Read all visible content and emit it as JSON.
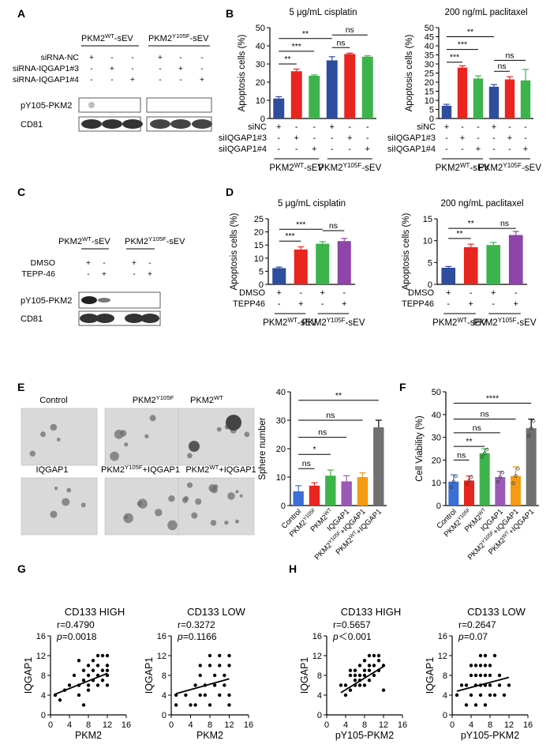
{
  "panel_letters": [
    "A",
    "B",
    "C",
    "D",
    "E",
    "F",
    "G",
    "H"
  ],
  "panelA": {
    "group_wt": "PKM2WT-sEV",
    "group_wt_base": "PKM2",
    "group_wt_sup": "WT",
    "group_wt_suffix": "-sEV",
    "group_mut_base": "PKM2",
    "group_mut_sup": "Y105F",
    "group_mut_suffix": "-sEV",
    "row_labels": [
      "siRNA-NC",
      "siRNA-IQGAP1#3",
      "siRNA-IQGAP1#4"
    ],
    "row_signs": [
      [
        "+",
        "-",
        "-",
        "+",
        "-",
        "-"
      ],
      [
        "-",
        "+",
        "-",
        "-",
        "+",
        "-"
      ],
      [
        "-",
        "-",
        "+",
        "-",
        "-",
        "+"
      ]
    ],
    "blot_labels": [
      "pY105-PKM2",
      "CD81"
    ]
  },
  "panelC": {
    "group_wt_base": "PKM2",
    "group_wt_sup": "WT",
    "group_wt_suffix": "-sEV",
    "group_mut_base": "PKM2",
    "group_mut_sup": "Y105F",
    "group_mut_suffix": "-sEV",
    "row_labels": [
      "DMSO",
      "TEPP-46"
    ],
    "row_signs": [
      [
        "+",
        "-",
        "+",
        "-"
      ],
      [
        "-",
        "+",
        "-",
        "+"
      ]
    ],
    "blot_labels": [
      "pY105-PKM2",
      "CD81"
    ]
  },
  "panelE": {
    "image_labels": [
      {
        "base": "Control",
        "sup": "",
        "suffix": ""
      },
      {
        "base": "PKM2",
        "sup": "Y105F",
        "suffix": ""
      },
      {
        "base": "PKM2",
        "sup": "WT",
        "suffix": ""
      },
      {
        "base": "IQGAP1",
        "sup": "",
        "suffix": ""
      },
      {
        "base": "PKM2",
        "sup": "Y105F",
        "suffix": "+IQGAP1"
      },
      {
        "base": "PKM2",
        "sup": "WT",
        "suffix": "+IQGAP1"
      }
    ]
  },
  "chart_data": [
    {
      "id": "B1",
      "type": "bar",
      "title": "5 μg/mL cisplatin",
      "ylabel": "Apoptosis cells (%)",
      "ylim": [
        0,
        50
      ],
      "yticks": [
        0,
        10,
        20,
        30,
        40,
        50
      ],
      "values": [
        11,
        26,
        23.5,
        32,
        35.5,
        34
      ],
      "errors": [
        1,
        1.2,
        0.5,
        2,
        0.5,
        0.5
      ],
      "colors": [
        "#2f4d9e",
        "#e8251f",
        "#3cb44b",
        "#2f4d9e",
        "#e8251f",
        "#3cb44b"
      ],
      "row_labels": [
        "siNC",
        "siIQGAP1#3",
        "siIQGAP1#4"
      ],
      "row_signs": [
        [
          "+",
          "-",
          "-",
          "+",
          "-",
          "-"
        ],
        [
          "-",
          "+",
          "-",
          "-",
          "+",
          "-"
        ],
        [
          "-",
          "-",
          "+",
          "-",
          "-",
          "+"
        ]
      ],
      "group_labels": [
        {
          "base": "PKM2",
          "sup": "WT",
          "suffix": "-sEV"
        },
        {
          "base": "PKM2",
          "sup": "Y105F",
          "suffix": "-sEV"
        }
      ],
      "significance": [
        {
          "from": 0,
          "to": 1,
          "label": "**",
          "y": 30
        },
        {
          "from": 0,
          "to": 2,
          "label": "***",
          "y": 37
        },
        {
          "from": 0,
          "to": 3,
          "label": "**",
          "y": 44
        },
        {
          "from": 3,
          "to": 4,
          "label": "ns",
          "y": 39
        },
        {
          "from": 3,
          "to": 5,
          "label": "ns",
          "y": 46
        }
      ]
    },
    {
      "id": "B2",
      "type": "bar",
      "title": "200 ng/mL paclitaxel",
      "ylabel": "Apoptosis cells (%)",
      "ylim": [
        0,
        50
      ],
      "yticks": [
        0,
        5,
        10,
        15,
        20,
        25,
        30,
        35,
        40,
        45,
        50
      ],
      "values": [
        7,
        28,
        22,
        17.5,
        21.5,
        21
      ],
      "errors": [
        0.8,
        1,
        1.5,
        1.2,
        1.5,
        6
      ],
      "colors": [
        "#2f4d9e",
        "#e8251f",
        "#3cb44b",
        "#2f4d9e",
        "#e8251f",
        "#3cb44b"
      ],
      "row_labels": [
        "siNC",
        "siIQGAP1#3",
        "siIQGAP1#4"
      ],
      "row_signs": [
        [
          "+",
          "-",
          "-",
          "+",
          "-",
          "-"
        ],
        [
          "-",
          "+",
          "-",
          "-",
          "+",
          "-"
        ],
        [
          "-",
          "-",
          "+",
          "-",
          "-",
          "+"
        ]
      ],
      "group_labels": [
        {
          "base": "PKM2",
          "sup": "WT",
          "suffix": "-sEV"
        },
        {
          "base": "PKM2",
          "sup": "Y105F",
          "suffix": "-sEV"
        }
      ],
      "significance": [
        {
          "from": 0,
          "to": 1,
          "label": "***",
          "y": 31
        },
        {
          "from": 0,
          "to": 2,
          "label": "***",
          "y": 38
        },
        {
          "from": 0,
          "to": 3,
          "label": "**",
          "y": 45
        },
        {
          "from": 3,
          "to": 4,
          "label": "ns",
          "y": 26
        },
        {
          "from": 3,
          "to": 5,
          "label": "ns",
          "y": 32
        }
      ]
    },
    {
      "id": "D1",
      "type": "bar",
      "title": "5 μg/mL cisplatin",
      "ylabel": "Apoptosis cells (%)",
      "ylim": [
        0,
        25
      ],
      "yticks": [
        0,
        5,
        10,
        15,
        20,
        25
      ],
      "values": [
        6.2,
        13.3,
        15.5,
        16.5
      ],
      "errors": [
        0.4,
        1,
        0.8,
        1
      ],
      "colors": [
        "#2f4d9e",
        "#e8251f",
        "#3cb44b",
        "#8e44a8"
      ],
      "row_labels": [
        "DMSO",
        "TEPP46"
      ],
      "row_signs": [
        [
          "+",
          "-",
          "+",
          "-"
        ],
        [
          "-",
          "+",
          "-",
          "+"
        ]
      ],
      "group_labels": [
        {
          "base": "PKM2",
          "sup": "WT",
          "suffix": "-sEV"
        },
        {
          "base": "PKM2",
          "sup": "Y105F",
          "suffix": "-sEV"
        }
      ],
      "significance": [
        {
          "from": 0,
          "to": 1,
          "label": "***",
          "y": 16.5
        },
        {
          "from": 0,
          "to": 2,
          "label": "***",
          "y": 21
        },
        {
          "from": 2,
          "to": 3,
          "label": "ns",
          "y": 20.5
        }
      ]
    },
    {
      "id": "D2",
      "type": "bar",
      "title": "200 ng/mL paclitaxel",
      "ylabel": "Apoptosis cells (%)",
      "ylim": [
        0,
        15
      ],
      "yticks": [
        0,
        5,
        10,
        15
      ],
      "values": [
        3.8,
        8.5,
        9,
        11.3
      ],
      "errors": [
        0.3,
        0.7,
        0.6,
        0.8
      ],
      "colors": [
        "#2f4d9e",
        "#e8251f",
        "#3cb44b",
        "#8e44a8"
      ],
      "row_labels": [
        "DMSO",
        "TEPP46"
      ],
      "row_signs": [
        [
          "+",
          "-",
          "+",
          "-"
        ],
        [
          "-",
          "+",
          "-",
          "+"
        ]
      ],
      "group_labels": [
        {
          "base": "PKM2",
          "sup": "WT",
          "suffix": "-sEV"
        },
        {
          "base": "PKM2",
          "sup": "Y105F",
          "suffix": "-sEV"
        }
      ],
      "significance": [
        {
          "from": 0,
          "to": 1,
          "label": "**",
          "y": 10.5
        },
        {
          "from": 0,
          "to": 2,
          "label": "**",
          "y": 12.8
        },
        {
          "from": 2,
          "to": 3,
          "label": "ns",
          "y": 12.8
        }
      ]
    },
    {
      "id": "E",
      "type": "bar",
      "title": "",
      "ylabel": "Sphere number",
      "ylim": [
        0,
        40
      ],
      "yticks": [
        0,
        10,
        20,
        30,
        40
      ],
      "categories": [
        {
          "base": "Control",
          "sup": "",
          "suffix": ""
        },
        {
          "base": "PKM2",
          "sup": "Y105F",
          "suffix": ""
        },
        {
          "base": "PKM2",
          "sup": "WT",
          "suffix": ""
        },
        {
          "base": "IQGAP1",
          "sup": "",
          "suffix": ""
        },
        {
          "base": "PKM2",
          "sup": "Y105F",
          "suffix": "+IQGAP1"
        },
        {
          "base": "PKM2",
          "sup": "WT",
          "suffix": "+IQGAP1"
        }
      ],
      "values": [
        5,
        7,
        10.5,
        8.5,
        10,
        27.5
      ],
      "errors": [
        2,
        1,
        2,
        2,
        1.5,
        2.5
      ],
      "colors": [
        "#3b6fd6",
        "#e8251f",
        "#3cb44b",
        "#9b59b6",
        "#f39c12",
        "#707070"
      ],
      "significance": [
        {
          "from": 0,
          "to": 1,
          "label": "ns",
          "y": 13
        },
        {
          "from": 0,
          "to": 2,
          "label": "*",
          "y": 18
        },
        {
          "from": 0,
          "to": 3,
          "label": "ns",
          "y": 24
        },
        {
          "from": 0,
          "to": 4,
          "label": "ns",
          "y": 30
        },
        {
          "from": 0,
          "to": 5,
          "label": "**",
          "y": 37
        }
      ]
    },
    {
      "id": "F",
      "type": "bar",
      "title": "",
      "ylabel": "Cell Viability (%)",
      "ylim": [
        0,
        50
      ],
      "yticks": [
        0,
        10,
        20,
        30,
        40,
        50
      ],
      "categories": [
        {
          "base": "Control",
          "sup": "",
          "suffix": ""
        },
        {
          "base": "PKM2",
          "sup": "Y105F",
          "suffix": ""
        },
        {
          "base": "PKM2",
          "sup": "WT",
          "suffix": ""
        },
        {
          "base": "IQGAP1",
          "sup": "",
          "suffix": ""
        },
        {
          "base": "PKM2",
          "sup": "Y105F",
          "suffix": "+IQGAP1"
        },
        {
          "base": "PKM2",
          "sup": "WT",
          "suffix": "+IQGAP1"
        }
      ],
      "values": [
        10.5,
        11,
        23,
        12.5,
        13,
        34
      ],
      "errors": [
        3,
        2,
        2,
        2.5,
        4,
        4
      ],
      "colors": [
        "#3b6fd6",
        "#e8251f",
        "#3cb44b",
        "#9b59b6",
        "#f39c12",
        "#707070"
      ],
      "significance": [
        {
          "from": 0,
          "to": 1,
          "label": "ns",
          "y": 20
        },
        {
          "from": 0,
          "to": 2,
          "label": "**",
          "y": 26
        },
        {
          "from": 0,
          "to": 3,
          "label": "ns",
          "y": 32
        },
        {
          "from": 0,
          "to": 4,
          "label": "ns",
          "y": 38
        },
        {
          "from": 0,
          "to": 5,
          "label": "****",
          "y": 45
        }
      ]
    },
    {
      "id": "G1",
      "type": "scatter",
      "title": "CD133 HIGH",
      "r_text": "r=0.4790",
      "p_text": "p=0.0018",
      "xlabel": "PKM2",
      "ylabel": "IQGAP1",
      "xlim": [
        0,
        16
      ],
      "ylim": [
        0,
        16
      ],
      "xticks": [
        0,
        4,
        8,
        12,
        16
      ],
      "yticks": [
        0,
        4,
        8,
        12,
        16
      ],
      "points": [
        [
          1,
          4
        ],
        [
          2,
          3
        ],
        [
          3,
          5
        ],
        [
          4,
          6
        ],
        [
          5,
          8
        ],
        [
          6,
          4
        ],
        [
          6,
          6
        ],
        [
          6,
          11
        ],
        [
          7,
          7
        ],
        [
          7,
          2
        ],
        [
          7,
          9
        ],
        [
          8,
          6
        ],
        [
          8,
          8
        ],
        [
          8,
          10
        ],
        [
          8,
          5
        ],
        [
          9,
          7
        ],
        [
          9,
          11
        ],
        [
          9,
          9
        ],
        [
          10,
          8
        ],
        [
          10,
          6
        ],
        [
          10,
          10
        ],
        [
          10,
          12
        ],
        [
          11,
          7
        ],
        [
          11,
          9
        ],
        [
          11,
          12
        ],
        [
          12,
          8
        ],
        [
          12,
          10
        ],
        [
          12,
          6
        ],
        [
          12,
          12
        ],
        [
          12,
          9
        ]
      ],
      "line": [
        [
          1,
          4.2
        ],
        [
          12,
          8.4
        ]
      ]
    },
    {
      "id": "G2",
      "type": "scatter",
      "title": "CD133 LOW",
      "r_text": "r=0.3272",
      "p_text": "p=0.1166",
      "xlabel": "PKM2",
      "ylabel": "IQGAP1",
      "xlim": [
        0,
        16
      ],
      "ylim": [
        0,
        16
      ],
      "xticks": [
        0,
        4,
        8,
        12,
        16
      ],
      "yticks": [
        0,
        4,
        8,
        12,
        16
      ],
      "points": [
        [
          1,
          4
        ],
        [
          1,
          2
        ],
        [
          3,
          4
        ],
        [
          4,
          2
        ],
        [
          5,
          2
        ],
        [
          5,
          6
        ],
        [
          6,
          4
        ],
        [
          6,
          8
        ],
        [
          6,
          10
        ],
        [
          7,
          4
        ],
        [
          7,
          6
        ],
        [
          8,
          2
        ],
        [
          8,
          10
        ],
        [
          8,
          12
        ],
        [
          9,
          6
        ],
        [
          9,
          8
        ],
        [
          10,
          10
        ],
        [
          10,
          4
        ],
        [
          10,
          12
        ],
        [
          11,
          6
        ],
        [
          11,
          8
        ],
        [
          12,
          10
        ],
        [
          12,
          12
        ],
        [
          12,
          2
        ],
        [
          12,
          4
        ]
      ],
      "line": [
        [
          1,
          4.3
        ],
        [
          12,
          7.3
        ]
      ]
    },
    {
      "id": "H1",
      "type": "scatter",
      "title": "CD133 HIGH",
      "r_text": "r=0.5657",
      "p_text": "p＜0.001",
      "xlabel": "pY105-PKM2",
      "ylabel": "IQGAP1",
      "xlim": [
        0,
        16
      ],
      "ylim": [
        0,
        16
      ],
      "xticks": [
        0,
        4,
        8,
        12,
        16
      ],
      "yticks": [
        0,
        4,
        8,
        12,
        16
      ],
      "points": [
        [
          3,
          6
        ],
        [
          4,
          4
        ],
        [
          4,
          6
        ],
        [
          5,
          5
        ],
        [
          5,
          8
        ],
        [
          5,
          9
        ],
        [
          6,
          6
        ],
        [
          6,
          7
        ],
        [
          6,
          8
        ],
        [
          7,
          6
        ],
        [
          7,
          8
        ],
        [
          7,
          10
        ],
        [
          7,
          7
        ],
        [
          8,
          8
        ],
        [
          8,
          9
        ],
        [
          8,
          11
        ],
        [
          8,
          6
        ],
        [
          9,
          9
        ],
        [
          9,
          10
        ],
        [
          9,
          12
        ],
        [
          10,
          10
        ],
        [
          10,
          8
        ],
        [
          10,
          12
        ],
        [
          11,
          9
        ],
        [
          11,
          11
        ],
        [
          12,
          10
        ],
        [
          12,
          5
        ],
        [
          6,
          9
        ],
        [
          9,
          7
        ],
        [
          11,
          12
        ]
      ],
      "line": [
        [
          3,
          4.5
        ],
        [
          12,
          9.8
        ]
      ]
    },
    {
      "id": "H2",
      "type": "scatter",
      "title": "CD133 LOW",
      "r_text": "r=0.2647",
      "p_text": "p=0.07",
      "xlabel": "pY105-PKM2",
      "ylabel": "IQGAP1",
      "xlim": [
        0,
        16
      ],
      "ylim": [
        0,
        16
      ],
      "xticks": [
        0,
        4,
        8,
        12,
        16
      ],
      "yticks": [
        0,
        4,
        8,
        12,
        16
      ],
      "points": [
        [
          1,
          4
        ],
        [
          2,
          6
        ],
        [
          3,
          2
        ],
        [
          3,
          6
        ],
        [
          4,
          4
        ],
        [
          4,
          8
        ],
        [
          4,
          10
        ],
        [
          5,
          2
        ],
        [
          5,
          6
        ],
        [
          5,
          8
        ],
        [
          5,
          10
        ],
        [
          6,
          4
        ],
        [
          6,
          6
        ],
        [
          6,
          8
        ],
        [
          6,
          12
        ],
        [
          7,
          2
        ],
        [
          7,
          6
        ],
        [
          7,
          10
        ],
        [
          7,
          12
        ],
        [
          8,
          4
        ],
        [
          8,
          6
        ],
        [
          8,
          8
        ],
        [
          8,
          10
        ],
        [
          9,
          4
        ],
        [
          9,
          12
        ],
        [
          10,
          6
        ],
        [
          10,
          8
        ],
        [
          11,
          4
        ],
        [
          12,
          6
        ],
        [
          6,
          10
        ],
        [
          7,
          8
        ]
      ],
      "line": [
        [
          1,
          4.8
        ],
        [
          12,
          7.6
        ]
      ]
    }
  ]
}
